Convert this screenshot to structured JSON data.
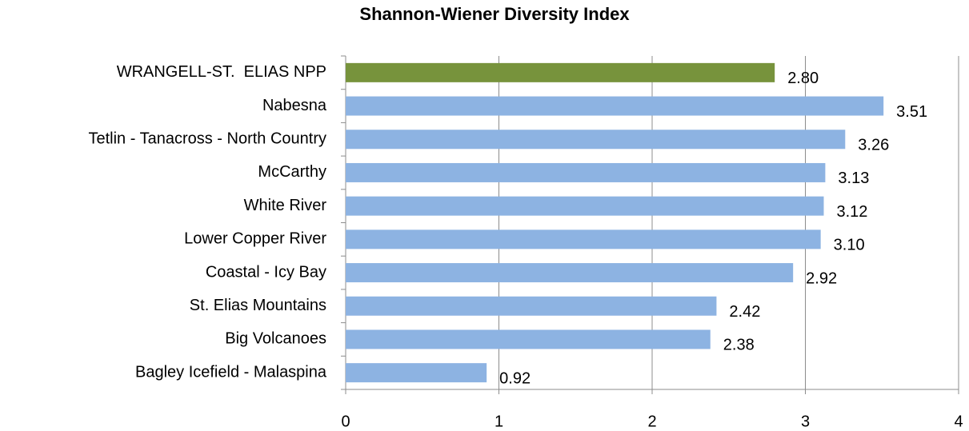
{
  "chart_data": {
    "type": "bar",
    "orientation": "horizontal",
    "title": "Shannon-Wiener Diversity Index",
    "categories": [
      "WRANGELL-ST.  ELIAS NPP",
      "Nabesna",
      "Tetlin - Tanacross - North Country",
      "McCarthy",
      "White River",
      "Lower Copper River",
      "Coastal - Icy Bay",
      "St. Elias Mountains",
      "Big Volcanoes",
      "Bagley Icefield - Malaspina"
    ],
    "values": [
      2.8,
      3.51,
      3.26,
      3.13,
      3.12,
      3.1,
      2.92,
      2.42,
      2.38,
      0.92
    ],
    "value_labels": [
      "2.80",
      "3.51",
      "3.26",
      "3.13",
      "3.12",
      "3.10",
      "2.92",
      "2.42",
      "2.38",
      "0.92"
    ],
    "colors": [
      "#77933c",
      "#8db3e2",
      "#8db3e2",
      "#8db3e2",
      "#8db3e2",
      "#8db3e2",
      "#8db3e2",
      "#8db3e2",
      "#8db3e2",
      "#8db3e2"
    ],
    "xlim": [
      0,
      4
    ],
    "xticks": [
      0,
      1,
      2,
      3,
      4
    ],
    "grid": true
  }
}
